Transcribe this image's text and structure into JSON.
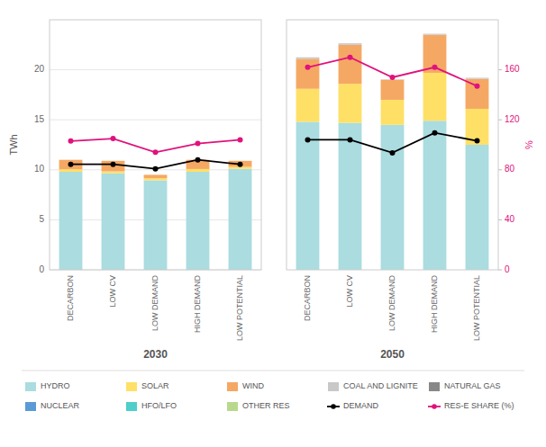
{
  "chart_data": [
    {
      "type": "bar",
      "stacked": true,
      "title": "2030",
      "legend": "bottom",
      "grid": true,
      "categories": [
        "DECARBON",
        "LOW CV",
        "LOW DEMAND",
        "HIGH DEMAND",
        "LOW POTENTIAL"
      ],
      "ylabel": "TWh",
      "ylim": [
        0,
        25
      ],
      "yticks": [
        0,
        5,
        10,
        15,
        20
      ],
      "y2lim": [
        0,
        200
      ],
      "series": [
        {
          "name": "HYDRO",
          "color": "#aadce0",
          "values": [
            9.8,
            9.65,
            8.95,
            9.8,
            10.1
          ]
        },
        {
          "name": "SOLAR",
          "color": "#ffe066",
          "values": [
            0.25,
            0.2,
            0.2,
            0.28,
            0.2
          ]
        },
        {
          "name": "WIND",
          "color": "#f5a864",
          "values": [
            0.95,
            1.05,
            0.35,
            0.92,
            0.6
          ]
        },
        {
          "name": "COAL AND LIGNITE",
          "color": "#c8c8c8",
          "values": [
            0.0,
            0.0,
            0.0,
            0.0,
            0.0
          ]
        },
        {
          "name": "NATURAL GAS",
          "color": "#888888",
          "values": [
            0.0,
            0.0,
            0.0,
            0.0,
            0.0
          ]
        },
        {
          "name": "NUCLEAR",
          "color": "#5b9bd5",
          "values": [
            0.0,
            0.0,
            0.0,
            0.0,
            0.0
          ]
        },
        {
          "name": "HFO/LFO",
          "color": "#4ecfc9",
          "values": [
            0.0,
            0.0,
            0.0,
            0.0,
            0.0
          ]
        },
        {
          "name": "OTHER RES",
          "color": "#b8d98d",
          "values": [
            0.0,
            0.0,
            0.0,
            0.0,
            0.0
          ]
        },
        {
          "name": "DEMAND",
          "type": "line",
          "color": "#000000",
          "marker": "circle",
          "values": [
            10.55,
            10.55,
            10.1,
            11.0,
            10.55
          ]
        },
        {
          "name": "RES-E SHARE (%)",
          "type": "line",
          "axis": "y2",
          "color": "#e0127c",
          "marker": "circle",
          "values": [
            103,
            105,
            94,
            101,
            104
          ]
        }
      ]
    },
    {
      "type": "bar",
      "stacked": true,
      "title": "2050",
      "grid": false,
      "categories": [
        "DECARBON",
        "LOW CV",
        "LOW DEMAND",
        "HIGH DEMAND",
        "LOW POTENTIAL"
      ],
      "ylim": [
        0,
        25
      ],
      "y2label": "%",
      "y2lim": [
        0,
        200
      ],
      "y2ticks": [
        0,
        40,
        80,
        120,
        160
      ],
      "series": [
        {
          "name": "HYDRO",
          "color": "#aadce0",
          "values": [
            14.8,
            14.7,
            14.5,
            14.9,
            12.5
          ]
        },
        {
          "name": "SOLAR",
          "color": "#ffe066",
          "values": [
            3.3,
            3.9,
            2.5,
            4.8,
            3.6
          ]
        },
        {
          "name": "WIND",
          "color": "#f5a864",
          "values": [
            3.0,
            3.9,
            2.0,
            3.8,
            3.0
          ]
        },
        {
          "name": "COAL AND LIGNITE",
          "color": "#c8c8c8",
          "values": [
            0.15,
            0.15,
            0.05,
            0.1,
            0.1
          ]
        },
        {
          "name": "NATURAL GAS",
          "color": "#888888",
          "values": [
            0.0,
            0.0,
            0.0,
            0.0,
            0.0
          ]
        },
        {
          "name": "NUCLEAR",
          "color": "#5b9bd5",
          "values": [
            0.0,
            0.0,
            0.0,
            0.0,
            0.0
          ]
        },
        {
          "name": "HFO/LFO",
          "color": "#4ecfc9",
          "values": [
            0.0,
            0.0,
            0.0,
            0.0,
            0.0
          ]
        },
        {
          "name": "OTHER RES",
          "color": "#b8d98d",
          "values": [
            0.0,
            0.0,
            0.0,
            0.0,
            0.0
          ]
        },
        {
          "name": "DEMAND",
          "type": "line",
          "color": "#000000",
          "marker": "circle",
          "values": [
            13.0,
            13.0,
            11.7,
            13.7,
            12.9
          ]
        },
        {
          "name": "RES-E SHARE (%)",
          "type": "line",
          "axis": "y2",
          "color": "#e0127c",
          "marker": "circle",
          "values": [
            162,
            170,
            154,
            162,
            147
          ]
        }
      ]
    }
  ]
}
